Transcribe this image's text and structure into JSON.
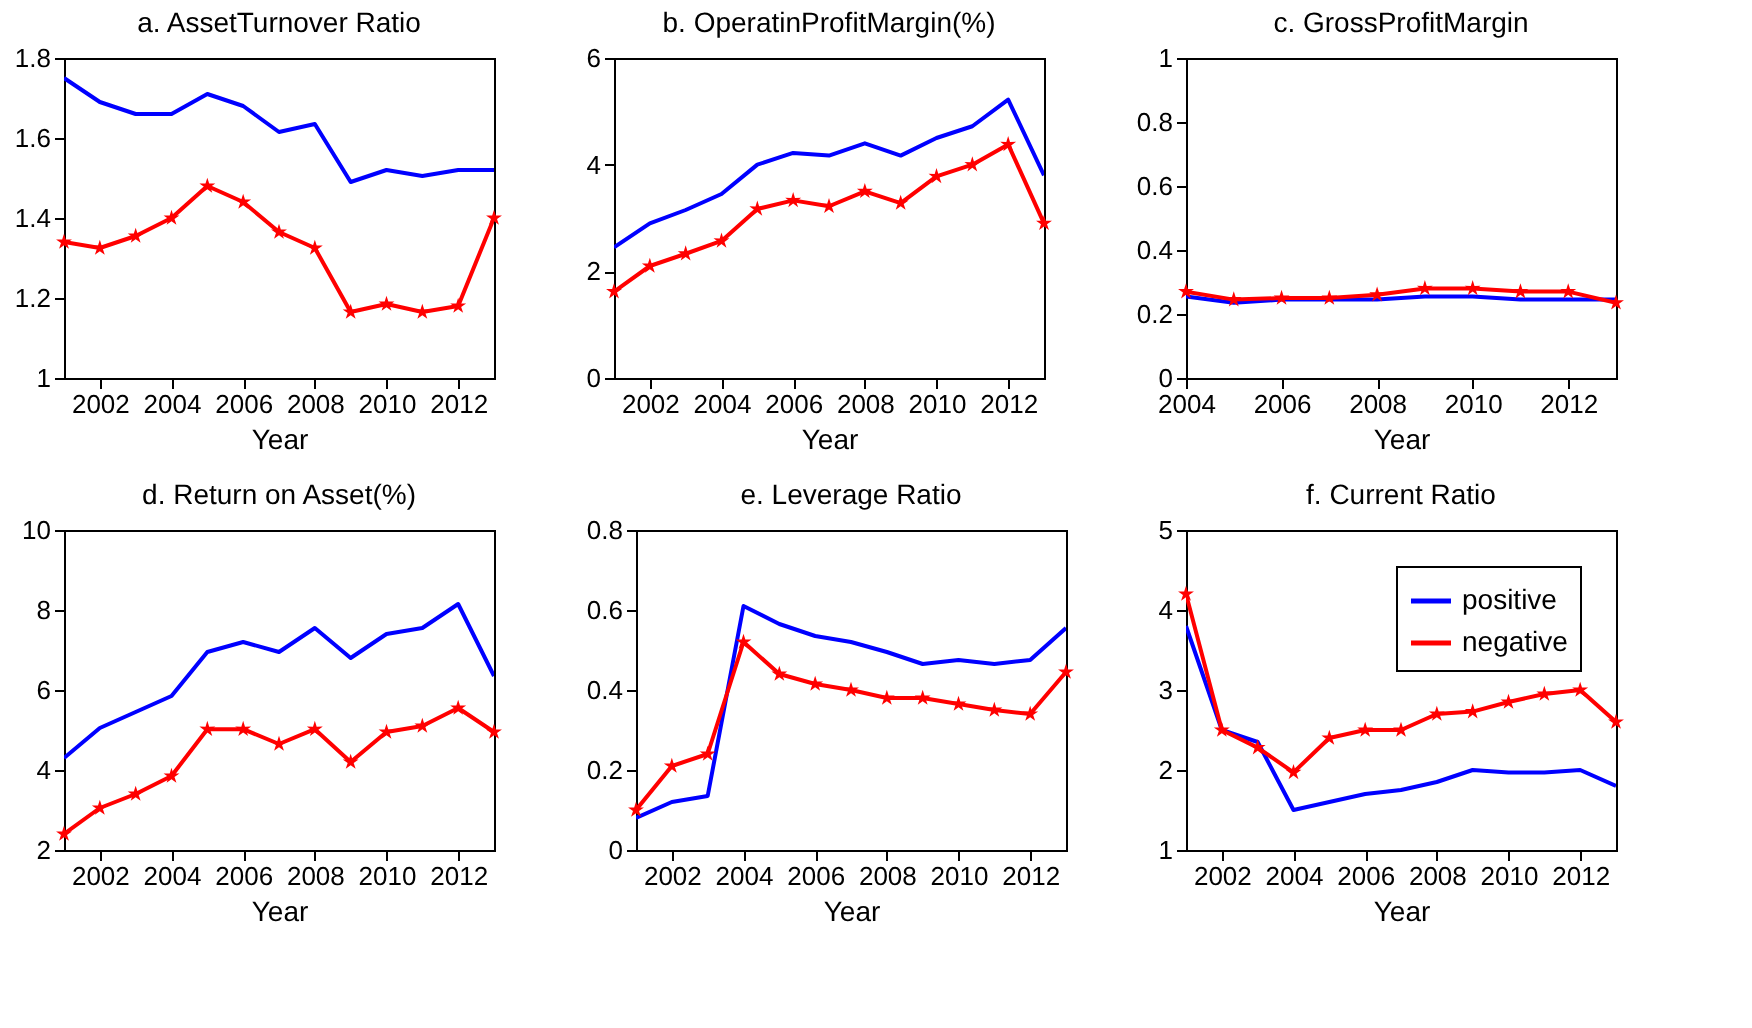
{
  "chart_data": [
    {
      "type": "line",
      "title": "a. AssetTurnover Ratio",
      "xlabel": "Year",
      "x": [
        2001,
        2002,
        2003,
        2004,
        2005,
        2006,
        2007,
        2008,
        2009,
        2010,
        2011,
        2012,
        2013
      ],
      "xlim": [
        2001,
        2013
      ],
      "xticks": [
        2002,
        2004,
        2006,
        2008,
        2010,
        2012
      ],
      "ylim": [
        1,
        1.8
      ],
      "yticks": [
        1,
        1.2,
        1.4,
        1.6,
        1.8
      ],
      "grid": false,
      "legend": false,
      "series": [
        {
          "color": "#0000ff",
          "marker": "none",
          "values": [
            1.75,
            1.69,
            1.66,
            1.66,
            1.71,
            1.68,
            1.615,
            1.635,
            1.49,
            1.52,
            1.505,
            1.52,
            1.52
          ]
        },
        {
          "color": "#ff0000",
          "marker": "star",
          "values": [
            1.34,
            1.325,
            1.355,
            1.4,
            1.48,
            1.44,
            1.365,
            1.325,
            1.165,
            1.185,
            1.165,
            1.18,
            1.4
          ]
        }
      ]
    },
    {
      "type": "line",
      "title": "b. OperatinProfitMargin(%)",
      "xlabel": "Year",
      "x": [
        2001,
        2002,
        2003,
        2004,
        2005,
        2006,
        2007,
        2008,
        2009,
        2010,
        2011,
        2012,
        2013
      ],
      "xlim": [
        2001,
        2013
      ],
      "xticks": [
        2002,
        2004,
        2006,
        2008,
        2010,
        2012
      ],
      "ylim": [
        0,
        6
      ],
      "yticks": [
        0,
        2,
        4,
        6
      ],
      "grid": false,
      "legend": false,
      "series": [
        {
          "color": "#0000ff",
          "marker": "none",
          "values": [
            2.45,
            2.9,
            3.15,
            3.45,
            4.0,
            4.22,
            4.17,
            4.4,
            4.17,
            4.5,
            4.72,
            5.22,
            3.8
          ]
        },
        {
          "color": "#ff0000",
          "marker": "star",
          "values": [
            1.62,
            2.1,
            2.33,
            2.57,
            3.17,
            3.33,
            3.22,
            3.5,
            3.28,
            3.78,
            4.0,
            4.38,
            2.9
          ]
        }
      ]
    },
    {
      "type": "line",
      "title": "c. GrossProfitMargin",
      "xlabel": "Year",
      "x": [
        2004,
        2005,
        2006,
        2007,
        2008,
        2009,
        2010,
        2011,
        2012,
        2013
      ],
      "xlim": [
        2004,
        2013
      ],
      "xticks": [
        2004,
        2006,
        2008,
        2010,
        2012
      ],
      "ylim": [
        0,
        1
      ],
      "yticks": [
        0,
        0.2,
        0.4,
        0.6,
        0.8,
        1
      ],
      "grid": false,
      "legend": false,
      "series": [
        {
          "color": "#0000ff",
          "marker": "none",
          "values": [
            0.255,
            0.235,
            0.245,
            0.245,
            0.245,
            0.255,
            0.255,
            0.245,
            0.245,
            0.245
          ]
        },
        {
          "color": "#ff0000",
          "marker": "star",
          "values": [
            0.27,
            0.245,
            0.25,
            0.25,
            0.26,
            0.28,
            0.28,
            0.27,
            0.27,
            0.235
          ]
        }
      ]
    },
    {
      "type": "line",
      "title": "d. Return on Asset(%)",
      "xlabel": "Year",
      "x": [
        2001,
        2002,
        2003,
        2004,
        2005,
        2006,
        2007,
        2008,
        2009,
        2010,
        2011,
        2012,
        2013
      ],
      "xlim": [
        2001,
        2013
      ],
      "xticks": [
        2002,
        2004,
        2006,
        2008,
        2010,
        2012
      ],
      "ylim": [
        2,
        10
      ],
      "yticks": [
        2,
        4,
        6,
        8,
        10
      ],
      "grid": false,
      "legend": false,
      "series": [
        {
          "color": "#0000ff",
          "marker": "none",
          "values": [
            4.3,
            5.05,
            5.45,
            5.85,
            6.95,
            7.2,
            6.95,
            7.55,
            6.8,
            7.4,
            7.55,
            8.15,
            6.35
          ]
        },
        {
          "color": "#ff0000",
          "marker": "star",
          "values": [
            2.4,
            3.05,
            3.4,
            3.85,
            5.02,
            5.02,
            4.65,
            5.02,
            4.2,
            4.95,
            5.1,
            5.55,
            4.95
          ]
        }
      ]
    },
    {
      "type": "line",
      "title": "e. Leverage Ratio",
      "xlabel": "Year",
      "x": [
        2001,
        2002,
        2003,
        2004,
        2005,
        2006,
        2007,
        2008,
        2009,
        2010,
        2011,
        2012,
        2013
      ],
      "xlim": [
        2001,
        2013
      ],
      "xticks": [
        2002,
        2004,
        2006,
        2008,
        2010,
        2012
      ],
      "ylim": [
        0,
        0.8
      ],
      "yticks": [
        0,
        0.2,
        0.4,
        0.6,
        0.8
      ],
      "grid": false,
      "legend": false,
      "series": [
        {
          "color": "#0000ff",
          "marker": "none",
          "values": [
            0.08,
            0.12,
            0.135,
            0.61,
            0.565,
            0.535,
            0.52,
            0.495,
            0.465,
            0.475,
            0.465,
            0.475,
            0.555
          ]
        },
        {
          "color": "#ff0000",
          "marker": "star",
          "values": [
            0.1,
            0.21,
            0.24,
            0.52,
            0.44,
            0.415,
            0.4,
            0.38,
            0.38,
            0.365,
            0.35,
            0.34,
            0.445
          ]
        }
      ]
    },
    {
      "type": "line",
      "title": "f. Current Ratio",
      "xlabel": "Year",
      "x": [
        2001,
        2002,
        2003,
        2004,
        2005,
        2006,
        2007,
        2008,
        2009,
        2010,
        2011,
        2012,
        2013
      ],
      "xlim": [
        2001,
        2013
      ],
      "xticks": [
        2002,
        2004,
        2006,
        2008,
        2010,
        2012
      ],
      "ylim": [
        1,
        5
      ],
      "yticks": [
        1,
        2,
        3,
        4,
        5
      ],
      "grid": false,
      "legend": "top right",
      "series": [
        {
          "name": "positive",
          "color": "#0000ff",
          "marker": "none",
          "values": [
            3.8,
            2.5,
            2.35,
            1.5,
            1.6,
            1.7,
            1.75,
            1.85,
            2.0,
            1.97,
            1.97,
            2.0,
            1.8
          ]
        },
        {
          "name": "negative",
          "color": "#ff0000",
          "marker": "star",
          "values": [
            4.2,
            2.5,
            2.28,
            1.97,
            2.4,
            2.5,
            2.5,
            2.7,
            2.73,
            2.85,
            2.95,
            3.0,
            2.6
          ]
        }
      ]
    }
  ]
}
